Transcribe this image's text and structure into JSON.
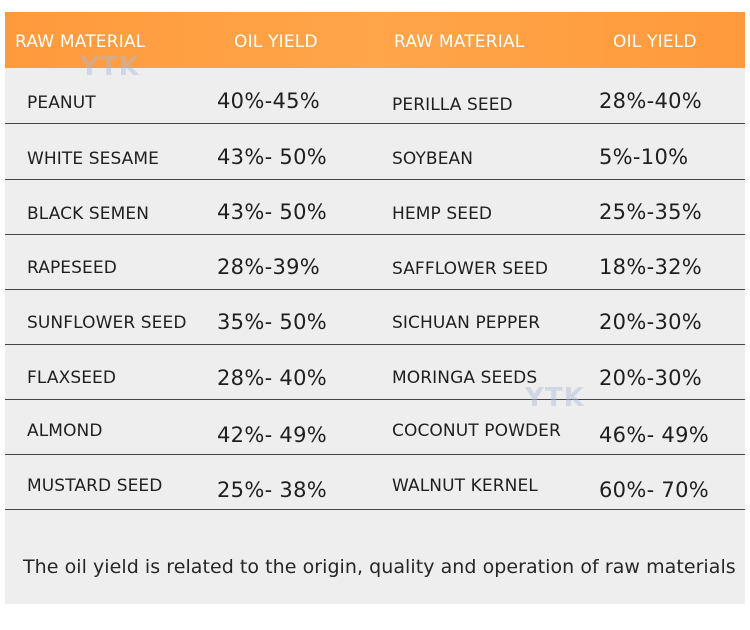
{
  "header": {
    "col1": "RAW MATERIAL",
    "col2": "OIL YIELD",
    "col3": "RAW MATERIAL",
    "col4": "OIL YIELD"
  },
  "rows": [
    {
      "left_material": "PEANUT",
      "left_yield": "40%-45%",
      "right_material": "PERILLA SEED",
      "right_yield": "28%-40%"
    },
    {
      "left_material": "WHITE SESAME",
      "left_yield": "43%- 50%",
      "right_material": "SOYBEAN",
      "right_yield": "5%-10%"
    },
    {
      "left_material": "BLACK SEMEN",
      "left_yield": "43%- 50%",
      "right_material": "HEMP SEED",
      "right_yield": "25%-35%"
    },
    {
      "left_material": "RAPESEED",
      "left_yield": "28%-39%",
      "right_material": "SAFFLOWER SEED",
      "right_yield": "18%-32%"
    },
    {
      "left_material": "SUNFLOWER SEED",
      "left_yield": "35%- 50%",
      "right_material": "SICHUAN PEPPER",
      "right_yield": "20%-30%"
    },
    {
      "left_material": "FLAXSEED",
      "left_yield": "28%- 40%",
      "right_material": "MORINGA SEEDS",
      "right_yield": "20%-30%"
    },
    {
      "left_material": "ALMOND",
      "left_yield": "42%- 49%",
      "right_material": "COCONUT POWDER",
      "right_yield": "46%- 49%"
    },
    {
      "left_material": "MUSTARD SEED",
      "left_yield": "25%- 38%",
      "right_material": "WALNUT KERNEL",
      "right_yield": "60%- 70%"
    }
  ],
  "note": "The oil yield is related to the origin, quality and operation of raw materials",
  "watermark": "YTK",
  "colors": {
    "header_bg": "#ff9a3c",
    "header_text": "#ffffff",
    "table_bg": "#eeeeee",
    "text": "#1f1f1f",
    "divider": "#444444"
  }
}
